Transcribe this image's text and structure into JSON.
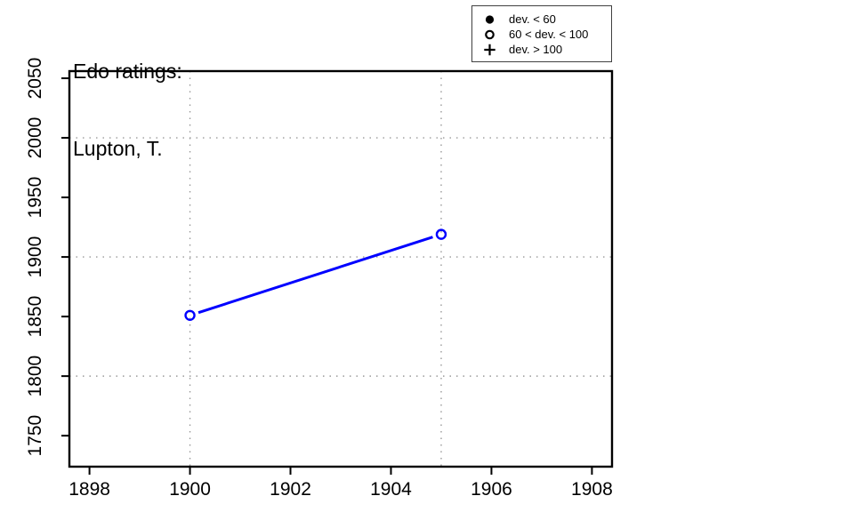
{
  "header": {
    "title_line1": "Edo ratings:",
    "title_line2": "Lupton, T."
  },
  "legend": {
    "position": "top-right",
    "items": [
      {
        "symbol": "filled-circle",
        "label": "dev. < 60"
      },
      {
        "symbol": "open-circle",
        "label": "60 < dev. < 100"
      },
      {
        "symbol": "plus",
        "label": "dev. > 100"
      }
    ]
  },
  "chart_data": {
    "type": "line",
    "title": "Edo ratings:",
    "subtitle": "Lupton, T.",
    "series": [
      {
        "name": "Edo rating",
        "x": [
          1900,
          1905
        ],
        "y": [
          1851,
          1919
        ],
        "marker": "open-circle",
        "marker_meaning": "60 < dev. < 100"
      }
    ],
    "xlim": [
      1897.6,
      1908.4
    ],
    "ylim": [
      1724,
      2056
    ],
    "xticks": [
      1898,
      1900,
      1902,
      1904,
      1906,
      1908
    ],
    "yticks": [
      1750,
      1800,
      1850,
      1900,
      1950,
      2000,
      2050
    ],
    "grid_x": [
      1900,
      1905
    ],
    "grid_y": [
      1800,
      1900,
      2000
    ],
    "grid_style": "dotted",
    "legend_position": "top-right",
    "colors": {
      "line": "#0000ff",
      "marker": "#0000ff",
      "grid": "#999999",
      "axis": "#000000",
      "text": "#000000"
    }
  }
}
